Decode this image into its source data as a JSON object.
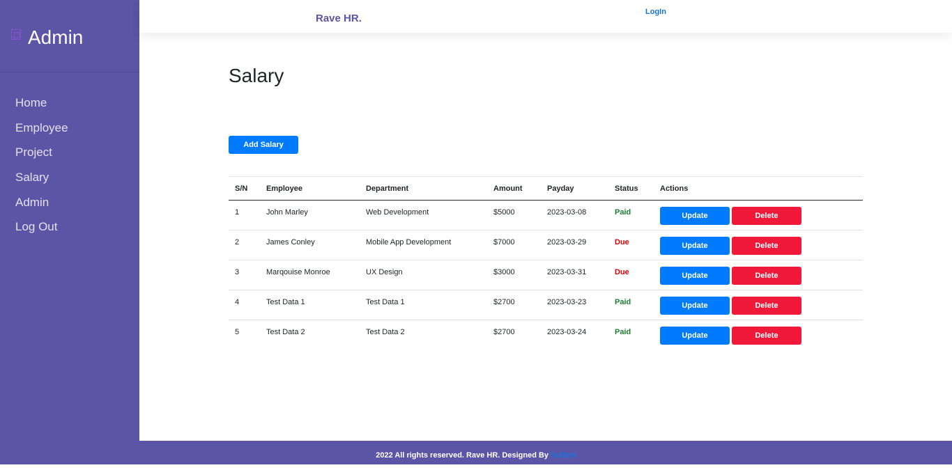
{
  "sidebar": {
    "brand_icon": "document-icon",
    "brand_title": "Admin",
    "items": [
      {
        "label": "Home"
      },
      {
        "label": "Employee"
      },
      {
        "label": "Project"
      },
      {
        "label": "Salary"
      },
      {
        "label": "Admin"
      },
      {
        "label": "Log Out"
      }
    ]
  },
  "topbar": {
    "brand": "Rave HR.",
    "login": "LogIn"
  },
  "main": {
    "title": "Salary",
    "add_button": "Add Salary",
    "table": {
      "headers": [
        "S/N",
        "Employee",
        "Department",
        "Amount",
        "Payday",
        "Status",
        "Actions"
      ],
      "update_label": "Update",
      "delete_label": "Delete",
      "rows": [
        {
          "sn": "1",
          "employee": "John Marley",
          "department": "Web Development",
          "amount": "$5000",
          "payday": "2023-03-08",
          "status": "Paid"
        },
        {
          "sn": "2",
          "employee": "James Conley",
          "department": "Mobile App Development",
          "amount": "$7000",
          "payday": "2023-03-29",
          "status": "Due"
        },
        {
          "sn": "3",
          "employee": "Marqouise Monroe",
          "department": "UX Design",
          "amount": "$3000",
          "payday": "2023-03-31",
          "status": "Due"
        },
        {
          "sn": "4",
          "employee": "Test Data 1",
          "department": "Test Data 1",
          "amount": "$2700",
          "payday": "2023-03-23",
          "status": "Paid"
        },
        {
          "sn": "5",
          "employee": "Test Data 2",
          "department": "Test Data 2",
          "amount": "$2700",
          "payday": "2023-03-24",
          "status": "Paid"
        }
      ]
    }
  },
  "footer": {
    "text": "2022 All rights reserved. Rave HR. Designed By ",
    "link": "Sulfani"
  },
  "colors": {
    "sidebar": "#5c54a4",
    "primary": "#007bff",
    "danger": "#f0193a",
    "paid": "#1e7e34",
    "due": "#dc0000"
  }
}
